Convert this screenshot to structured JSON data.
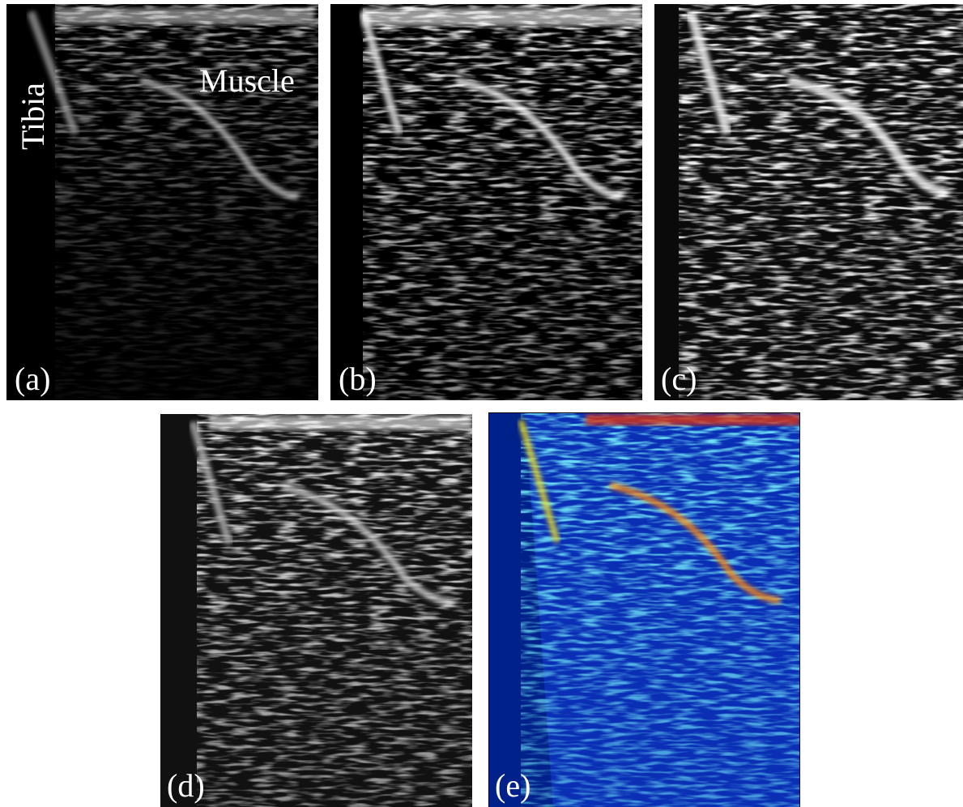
{
  "annotations": {
    "tibia": "Tibia",
    "muscle": "Muscle"
  },
  "panels": [
    {
      "label": "(a)"
    },
    {
      "label": "(b)"
    },
    {
      "label": "(c)"
    },
    {
      "label": "(d)"
    },
    {
      "label": "(e)"
    }
  ]
}
